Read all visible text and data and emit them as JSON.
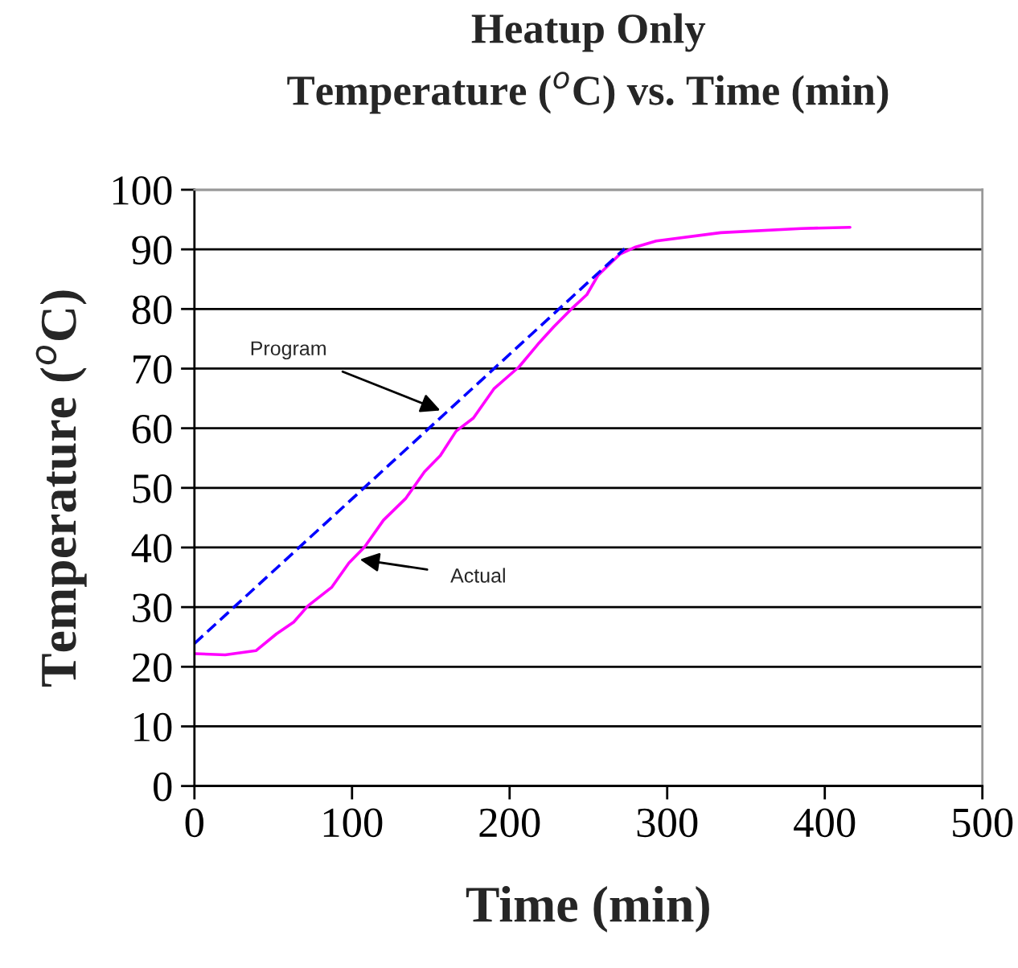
{
  "chart_data": {
    "type": "line",
    "title": "Heatup Only\nTemperature ($^{o}$C) vs. Time (min)",
    "xlabel": "Time (min)",
    "ylabel": "Temperature ($^{o}$C)",
    "series": [
      {
        "color": "#ff00ff",
        "line_style": "solid",
        "x": [
          0,
          19.5,
          39,
          52,
          63,
          72,
          87,
          98,
          108,
          120,
          134,
          146,
          156,
          166,
          177,
          190,
          206,
          218,
          228,
          240,
          249,
          256,
          270,
          280,
          293,
          334,
          385,
          416
        ],
        "values": [
          22.2,
          22,
          22.7,
          25.5,
          27.5,
          30.2,
          33.3,
          37.4,
          40.1,
          44.6,
          48.2,
          52.7,
          55.4,
          59.5,
          61.7,
          66.6,
          70.3,
          74.1,
          77,
          80.2,
          82.4,
          85.6,
          89.2,
          90.4,
          91.4,
          92.8,
          93.5,
          93.7
        ]
      },
      {
        "color": "#0000ff",
        "line_style": "dashed",
        "x": [
          0,
          273
        ],
        "values": [
          23.9,
          90.1
        ]
      }
    ],
    "annotations": [
      {
        "text": "Program",
        "x": 156,
        "y": 63
      },
      {
        "text": "Actual",
        "x": 105,
        "y": 38
      }
    ],
    "xlim": [
      0,
      500
    ],
    "xticks": [
      0,
      100,
      200,
      300,
      400,
      500
    ],
    "ylim": [
      0,
      100
    ],
    "yticks": [
      0,
      10,
      20,
      30,
      40,
      50,
      60,
      70,
      80,
      90,
      100
    ],
    "grid": "y",
    "legend": false,
    "marker": "none"
  }
}
